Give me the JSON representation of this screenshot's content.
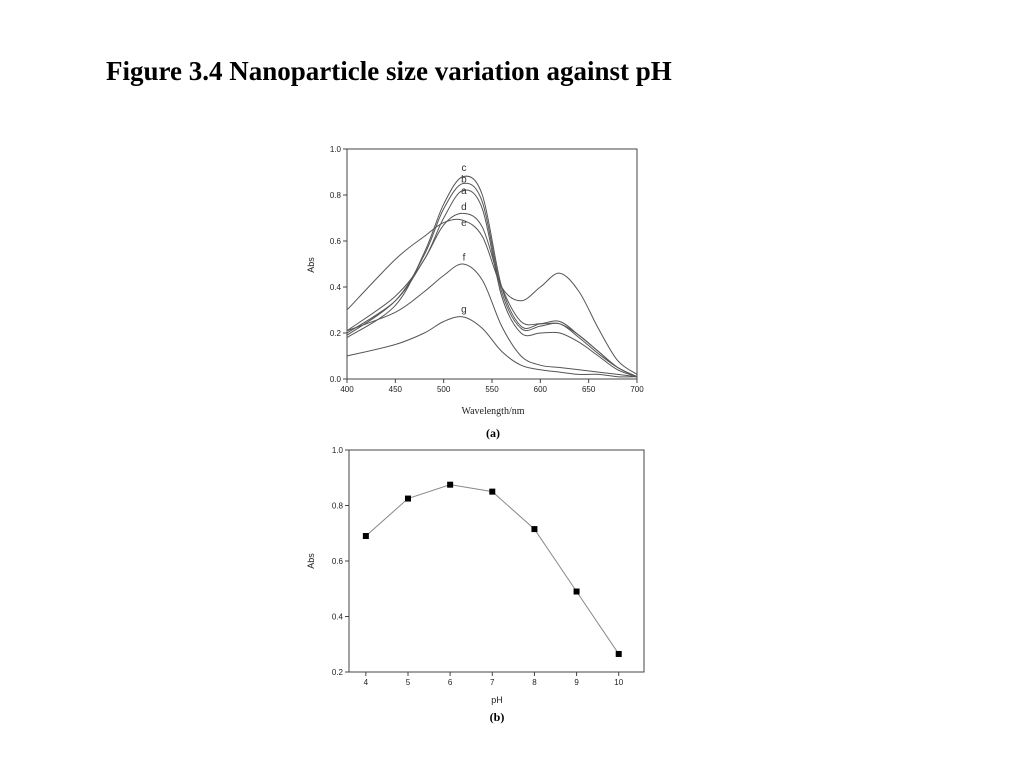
{
  "title": "Figure 3.4 Nanoparticle size variation against pH",
  "chart_data": [
    {
      "type": "line",
      "panel_label": "(a)",
      "xlabel": "Wavelength/nm",
      "ylabel": "Abs",
      "xlim": [
        400,
        700
      ],
      "ylim": [
        0.0,
        1.0
      ],
      "x_ticks": [
        400,
        450,
        500,
        550,
        600,
        650,
        700
      ],
      "y_ticks": [
        "0.0",
        "0.2",
        "0.4",
        "0.6",
        "0.8",
        "1.0"
      ],
      "grid": false,
      "series": [
        {
          "name": "a",
          "x": [
            400,
            450,
            480,
            500,
            520,
            540,
            560,
            580,
            600,
            620,
            640,
            660,
            680,
            700
          ],
          "y": [
            0.21,
            0.36,
            0.52,
            0.7,
            0.82,
            0.74,
            0.36,
            0.2,
            0.2,
            0.2,
            0.16,
            0.1,
            0.04,
            0.01
          ]
        },
        {
          "name": "b",
          "x": [
            400,
            450,
            480,
            500,
            520,
            540,
            560,
            580,
            600,
            620,
            640,
            660,
            680,
            700
          ],
          "y": [
            0.19,
            0.34,
            0.54,
            0.74,
            0.85,
            0.77,
            0.38,
            0.22,
            0.23,
            0.24,
            0.18,
            0.11,
            0.05,
            0.01
          ]
        },
        {
          "name": "c",
          "x": [
            400,
            450,
            480,
            500,
            520,
            540,
            560,
            580,
            600,
            620,
            640,
            660,
            680,
            700
          ],
          "y": [
            0.18,
            0.32,
            0.55,
            0.76,
            0.88,
            0.8,
            0.4,
            0.23,
            0.24,
            0.25,
            0.19,
            0.12,
            0.05,
            0.01
          ]
        },
        {
          "name": "d",
          "x": [
            400,
            450,
            480,
            500,
            520,
            540,
            560,
            580,
            600,
            620,
            640,
            660,
            680,
            700
          ],
          "y": [
            0.2,
            0.34,
            0.52,
            0.67,
            0.72,
            0.66,
            0.4,
            0.25,
            0.24,
            0.24,
            0.19,
            0.12,
            0.05,
            0.01
          ]
        },
        {
          "name": "e",
          "x": [
            400,
            450,
            480,
            500,
            520,
            540,
            560,
            580,
            600,
            620,
            640,
            660,
            680,
            700
          ],
          "y": [
            0.3,
            0.52,
            0.62,
            0.68,
            0.69,
            0.62,
            0.4,
            0.34,
            0.4,
            0.46,
            0.38,
            0.22,
            0.08,
            0.02
          ]
        },
        {
          "name": "f",
          "x": [
            400,
            450,
            480,
            500,
            520,
            540,
            560,
            580,
            600,
            620,
            640,
            660,
            680,
            700
          ],
          "y": [
            0.21,
            0.29,
            0.38,
            0.45,
            0.5,
            0.43,
            0.23,
            0.1,
            0.06,
            0.05,
            0.04,
            0.03,
            0.02,
            0.01
          ]
        },
        {
          "name": "g",
          "x": [
            400,
            450,
            480,
            500,
            520,
            540,
            560,
            580,
            600,
            620,
            640,
            660,
            680,
            700
          ],
          "y": [
            0.1,
            0.15,
            0.2,
            0.25,
            0.27,
            0.22,
            0.12,
            0.06,
            0.04,
            0.03,
            0.02,
            0.02,
            0.01,
            0.01
          ]
        }
      ],
      "curve_labels": [
        {
          "text": "c",
          "x": 521,
          "y": 0.905
        },
        {
          "text": "b",
          "x": 521,
          "y": 0.855
        },
        {
          "text": "a",
          "x": 521,
          "y": 0.805
        },
        {
          "text": "d",
          "x": 521,
          "y": 0.735
        },
        {
          "text": "e",
          "x": 521,
          "y": 0.665
        },
        {
          "text": "f",
          "x": 521,
          "y": 0.515
        },
        {
          "text": "g",
          "x": 521,
          "y": 0.29
        }
      ]
    },
    {
      "type": "line",
      "panel_label": "(b)",
      "xlabel": "pH",
      "ylabel": "Abs",
      "xlim": [
        3.6,
        10.6
      ],
      "ylim": [
        0.2,
        1.0
      ],
      "x_ticks": [
        4,
        5,
        6,
        7,
        8,
        9,
        10
      ],
      "y_ticks": [
        "0.2",
        "0.4",
        "0.6",
        "0.8",
        "1.0"
      ],
      "grid": false,
      "marker": "square",
      "series": [
        {
          "name": "",
          "x": [
            4,
            5,
            6,
            7,
            8,
            9,
            10
          ],
          "y": [
            0.69,
            0.825,
            0.875,
            0.85,
            0.715,
            0.49,
            0.265
          ]
        }
      ]
    }
  ]
}
